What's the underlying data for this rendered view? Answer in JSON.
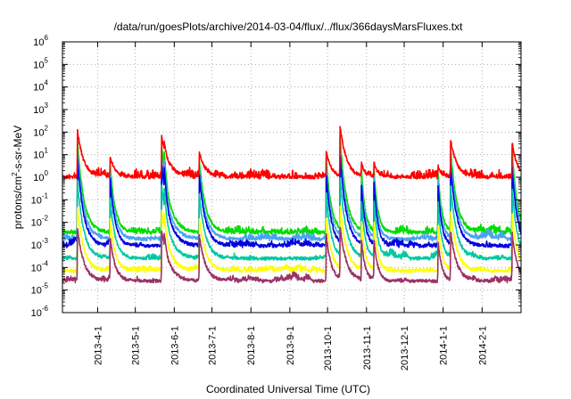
{
  "chart_data": {
    "type": "line",
    "title": "/data/run/goesPlots/archive/2014-03-04/flux/../flux/366daysMarsFluxes.txt",
    "xlabel": "Coordinated Universal Time (UTC)",
    "ylabel": {
      "base": "protons/cm",
      "sup": "2",
      "rest": "-s-sr-MeV"
    },
    "yscale": "log",
    "ylim": [
      1e-06,
      1000000.0
    ],
    "xlim": [
      "2013-03-04",
      "2014-03-04"
    ],
    "grid": true,
    "legend": "none",
    "y_ticks": [
      {
        "value": 1e-06,
        "base": "10",
        "exp": "-6"
      },
      {
        "value": 1e-05,
        "base": "10",
        "exp": "-5"
      },
      {
        "value": 0.0001,
        "base": "10",
        "exp": "-4"
      },
      {
        "value": 0.001,
        "base": "10",
        "exp": "-3"
      },
      {
        "value": 0.01,
        "base": "10",
        "exp": "-2"
      },
      {
        "value": 0.1,
        "base": "10",
        "exp": "-1"
      },
      {
        "value": 1.0,
        "base": "10",
        "exp": "0"
      },
      {
        "value": 10.0,
        "base": "10",
        "exp": "1"
      },
      {
        "value": 100.0,
        "base": "10",
        "exp": "2"
      },
      {
        "value": 1000.0,
        "base": "10",
        "exp": "3"
      },
      {
        "value": 10000.0,
        "base": "10",
        "exp": "4"
      },
      {
        "value": 100000.0,
        "base": "10",
        "exp": "5"
      },
      {
        "value": 1000000.0,
        "base": "10",
        "exp": "6"
      }
    ],
    "x_ticks": [
      {
        "date": "2013-04-01",
        "label": "2013-4-1"
      },
      {
        "date": "2013-05-01",
        "label": "2013-5-1"
      },
      {
        "date": "2013-06-01",
        "label": "2013-6-1"
      },
      {
        "date": "2013-07-01",
        "label": "2013-7-1"
      },
      {
        "date": "2013-08-01",
        "label": "2013-8-1"
      },
      {
        "date": "2013-09-01",
        "label": "2013-9-1"
      },
      {
        "date": "2013-10-01",
        "label": "2013-10-1"
      },
      {
        "date": "2013-11-01",
        "label": "2013-11-1"
      },
      {
        "date": "2013-12-01",
        "label": "2013-12-1"
      },
      {
        "date": "2014-01-01",
        "label": "2014-1-1"
      },
      {
        "date": "2014-02-01",
        "label": "2014-2-1"
      }
    ],
    "events": [
      {
        "date": "2013-03-16",
        "peak": 120,
        "decay_days": 5
      },
      {
        "date": "2013-04-11",
        "peak": 8,
        "decay_days": 4
      },
      {
        "date": "2013-05-22",
        "peak": 60,
        "decay_days": 6
      },
      {
        "date": "2013-05-24",
        "peak": 40,
        "decay_days": 4
      },
      {
        "date": "2013-06-21",
        "peak": 12,
        "decay_days": 5
      },
      {
        "date": "2013-09-30",
        "peak": 15,
        "decay_days": 4
      },
      {
        "date": "2013-10-11",
        "peak": 200,
        "decay_days": 5
      },
      {
        "date": "2013-10-28",
        "peak": 4,
        "decay_days": 3
      },
      {
        "date": "2013-11-07",
        "peak": 5,
        "decay_days": 3
      },
      {
        "date": "2013-12-28",
        "peak": 3,
        "decay_days": 3
      },
      {
        "date": "2014-01-07",
        "peak": 45,
        "decay_days": 5
      },
      {
        "date": "2014-02-25",
        "peak": 35,
        "decay_days": 4
      }
    ],
    "series": [
      {
        "color": "#ff0000",
        "base": 1.0,
        "noise": 0.5,
        "resp": 1.0,
        "zorder": 7
      },
      {
        "color": "#00dd00",
        "base": 0.0035,
        "noise": 0.35,
        "resp": 0.9,
        "zorder": 1
      },
      {
        "color": "#4aa3f0",
        "base": 0.0018,
        "noise": 0.3,
        "resp": 0.8,
        "zorder": 2
      },
      {
        "color": "#0000e0",
        "base": 0.0009,
        "noise": 0.3,
        "resp": 0.75,
        "zorder": 3
      },
      {
        "color": "#00c8a0",
        "base": 0.00025,
        "noise": 0.3,
        "resp": 0.6,
        "zorder": 4
      },
      {
        "color": "#ffff00",
        "base": 7e-05,
        "noise": 0.25,
        "resp": 0.45,
        "zorder": 5
      },
      {
        "color": "#993366",
        "base": 2.5e-05,
        "noise": 0.25,
        "resp": 0.35,
        "zorder": 6
      }
    ]
  }
}
